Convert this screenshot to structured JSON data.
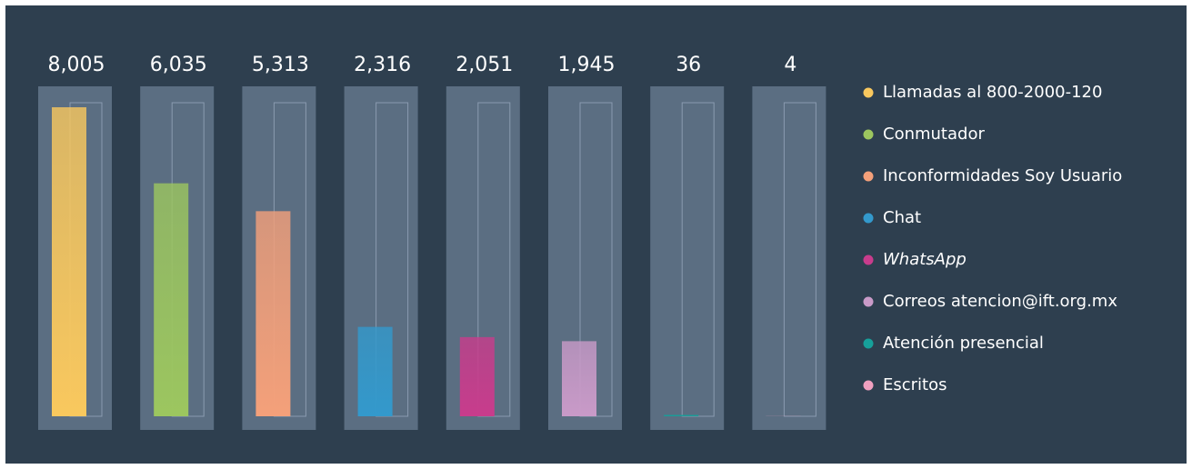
{
  "chart_data": {
    "type": "bar",
    "categories": [
      "Llamadas al 800-2000-120",
      "Conmutador",
      "Inconformidades Soy Usuario",
      "Chat",
      "WhatsApp",
      "Correos atencion@ift.org.mx",
      "Atención presencial",
      "Escritos"
    ],
    "values": [
      8005,
      6035,
      5313,
      2316,
      2051,
      1945,
      36,
      4
    ],
    "value_labels": [
      "8,005",
      "6,035",
      "5,313",
      "2,316",
      "2,051",
      "1,945",
      "36",
      "4"
    ],
    "colors": [
      "#f9c85e",
      "#9cc65f",
      "#f4a07a",
      "#3399cc",
      "#c83c8c",
      "#c99ac8",
      "#16a09a",
      "#f0a0c0"
    ],
    "legend": "right"
  }
}
